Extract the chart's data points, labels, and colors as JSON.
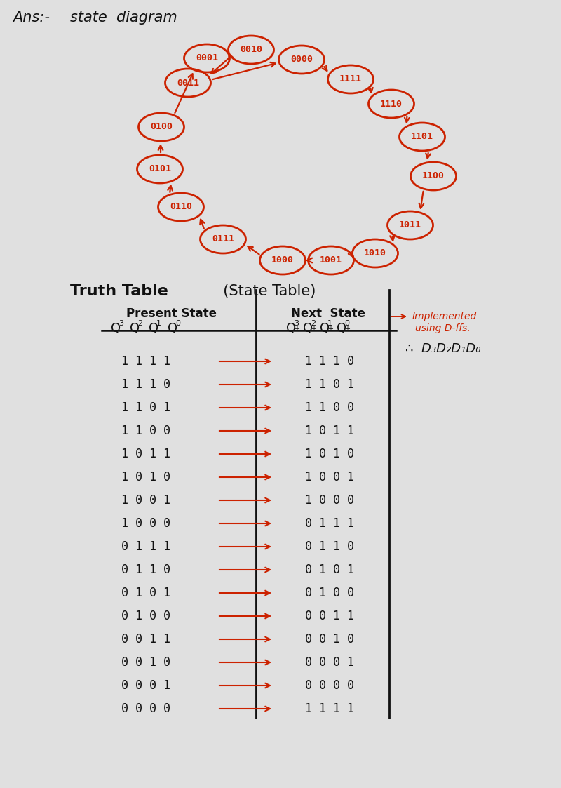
{
  "bg_color": "#e0e0e0",
  "red_color": "#cc2200",
  "black_color": "#111111",
  "state_positions": [
    [
      "0001",
      295,
      1040
    ],
    [
      "0010",
      358,
      1052
    ],
    [
      "0011",
      268,
      1005
    ],
    [
      "0000",
      430,
      1038
    ],
    [
      "1111",
      500,
      1010
    ],
    [
      "1110",
      558,
      975
    ],
    [
      "1101",
      602,
      928
    ],
    [
      "1100",
      618,
      872
    ],
    [
      "1011",
      585,
      802
    ],
    [
      "1010",
      535,
      762
    ],
    [
      "1001",
      472,
      752
    ],
    [
      "1000",
      403,
      752
    ],
    [
      "0111",
      318,
      782
    ],
    [
      "0110",
      258,
      828
    ],
    [
      "0101",
      228,
      882
    ],
    [
      "0100",
      230,
      942
    ]
  ],
  "rows": [
    {
      "ps": "1 1 1 1",
      "ns": "1 1 1 0"
    },
    {
      "ps": "1 1 1 0",
      "ns": "1 1 0 1"
    },
    {
      "ps": "1 1 0 1",
      "ns": "1 1 0 0"
    },
    {
      "ps": "1 1 0 0",
      "ns": "1 0 1 1"
    },
    {
      "ps": "1 0 1 1",
      "ns": "1 0 1 0"
    },
    {
      "ps": "1 0 1 0",
      "ns": "1 0 0 1"
    },
    {
      "ps": "1 0 0 1",
      "ns": "1 0 0 0"
    },
    {
      "ps": "1 0 0 0",
      "ns": "0 1 1 1"
    },
    {
      "ps": "0 1 1 1",
      "ns": "0 1 1 0"
    },
    {
      "ps": "0 1 1 0",
      "ns": "0 1 0 1"
    },
    {
      "ps": "0 1 0 1",
      "ns": "0 1 0 0"
    },
    {
      "ps": "0 1 0 0",
      "ns": "0 0 1 1"
    },
    {
      "ps": "0 0 1 1",
      "ns": "0 0 1 0"
    },
    {
      "ps": "0 0 1 0",
      "ns": "0 0 0 1"
    },
    {
      "ps": "0 0 0 1",
      "ns": "0 0 0 0"
    },
    {
      "ps": "0 0 0 0",
      "ns": "1 1 1 1"
    }
  ]
}
